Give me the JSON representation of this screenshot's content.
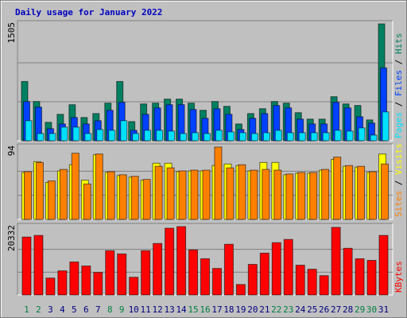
{
  "chart_data": [
    {
      "type": "bar",
      "title": "Daily usage for January 2022",
      "legend_separator": " / ",
      "ylim": [
        0,
        1505
      ],
      "yticks": [
        1505
      ],
      "series": [
        {
          "name": "Hits",
          "color": "#008060",
          "values": [
            763,
            505,
            237,
            340,
            464,
            299,
            350,
            484,
            763,
            247,
            474,
            484,
            536,
            536,
            484,
            392,
            505,
            443,
            216,
            350,
            412,
            505,
            484,
            361,
            278,
            278,
            567,
            474,
            454,
            268,
            1505
          ]
        },
        {
          "name": "Files",
          "color": "#0040ff",
          "values": [
            505,
            433,
            155,
            216,
            299,
            216,
            258,
            392,
            495,
            134,
            340,
            423,
            464,
            464,
            402,
            289,
            412,
            340,
            144,
            289,
            350,
            454,
            423,
            278,
            216,
            216,
            495,
            423,
            309,
            227,
            938
          ]
        },
        {
          "name": "Pages",
          "color": "#00e0ff",
          "values": [
            258,
            93,
            93,
            175,
            175,
            93,
            144,
            134,
            258,
            93,
            134,
            134,
            124,
            93,
            103,
            93,
            134,
            113,
            103,
            93,
            103,
            134,
            103,
            103,
            103,
            103,
            134,
            124,
            165,
            72,
            371
          ]
        }
      ]
    },
    {
      "type": "bar",
      "legend_separator": " / ",
      "ylim": [
        0,
        94
      ],
      "yticks": [
        94
      ],
      "series": [
        {
          "name": "Visits",
          "color": "#ffff00",
          "values": [
            61,
            75,
            48,
            63,
            71,
            51,
            84,
            61,
            57,
            55,
            51,
            73,
            73,
            62,
            63,
            63,
            70,
            72,
            70,
            63,
            74,
            74,
            58,
            60,
            60,
            64,
            78,
            69,
            68,
            61,
            85
          ]
        },
        {
          "name": "Sites",
          "color": "#ff8000",
          "values": [
            62,
            74,
            50,
            65,
            86,
            46,
            85,
            62,
            58,
            56,
            52,
            69,
            67,
            63,
            64,
            64,
            94,
            67,
            71,
            64,
            65,
            64,
            59,
            61,
            61,
            65,
            81,
            70,
            69,
            62,
            72
          ]
        }
      ]
    },
    {
      "type": "bar",
      "ylim": [
        0,
        20332
      ],
      "yticks": [
        20332
      ],
      "categories": [
        "1",
        "2",
        "3",
        "4",
        "5",
        "6",
        "7",
        "8",
        "9",
        "10",
        "11",
        "12",
        "13",
        "14",
        "15",
        "16",
        "17",
        "18",
        "19",
        "20",
        "21",
        "22",
        "23",
        "24",
        "25",
        "26",
        "27",
        "28",
        "29",
        "30",
        "31"
      ],
      "category_colors": [
        "#008040",
        "#008040",
        "#000080",
        "#000080",
        "#000080",
        "#000080",
        "#000080",
        "#008040",
        "#008040",
        "#000080",
        "#000080",
        "#000080",
        "#000080",
        "#000080",
        "#008040",
        "#008040",
        "#000080",
        "#000080",
        "#000080",
        "#000080",
        "#000080",
        "#008040",
        "#008040",
        "#000080",
        "#000080",
        "#000080",
        "#000080",
        "#000080",
        "#008040",
        "#008040",
        "#000080"
      ],
      "series": [
        {
          "name": "KBytes",
          "color": "#ff0000",
          "values": [
            17222,
            17702,
            5023,
            7176,
            9807,
            8611,
            6698,
            13156,
            12199,
            5263,
            13156,
            15309,
            19854,
            20332,
            13395,
            10764,
            7894,
            15070,
            3110,
            9090,
            12439,
            15548,
            16505,
            8850,
            7654,
            5741,
            20100,
            13874,
            10764,
            10286,
            17702
          ]
        }
      ]
    }
  ]
}
